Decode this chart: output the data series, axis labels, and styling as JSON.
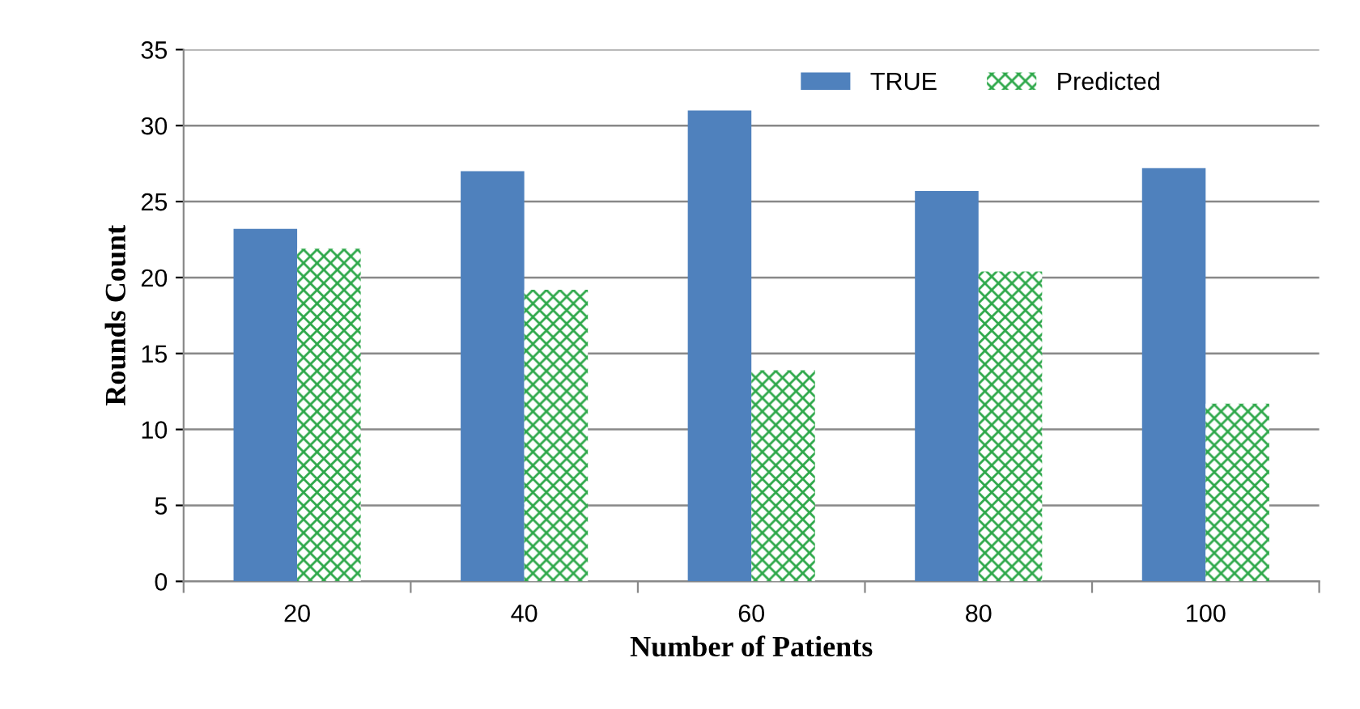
{
  "chart_data": {
    "type": "bar",
    "xlabel": "Number of Patients",
    "ylabel": "Rounds Count",
    "categories": [
      "20",
      "40",
      "60",
      "80",
      "100"
    ],
    "series": [
      {
        "name": "TRUE",
        "color": "#4f81bd",
        "values": [
          23.2,
          27.0,
          31.0,
          25.7,
          27.2
        ]
      },
      {
        "name": "Predicted",
        "color": "#2ea84a",
        "values": [
          21.9,
          19.2,
          13.9,
          20.4,
          11.7
        ]
      }
    ],
    "ylim": [
      0,
      35
    ],
    "yticks": [
      0,
      5,
      10,
      15,
      20,
      25,
      30,
      35
    ],
    "grid": "y",
    "legend": "top right"
  }
}
